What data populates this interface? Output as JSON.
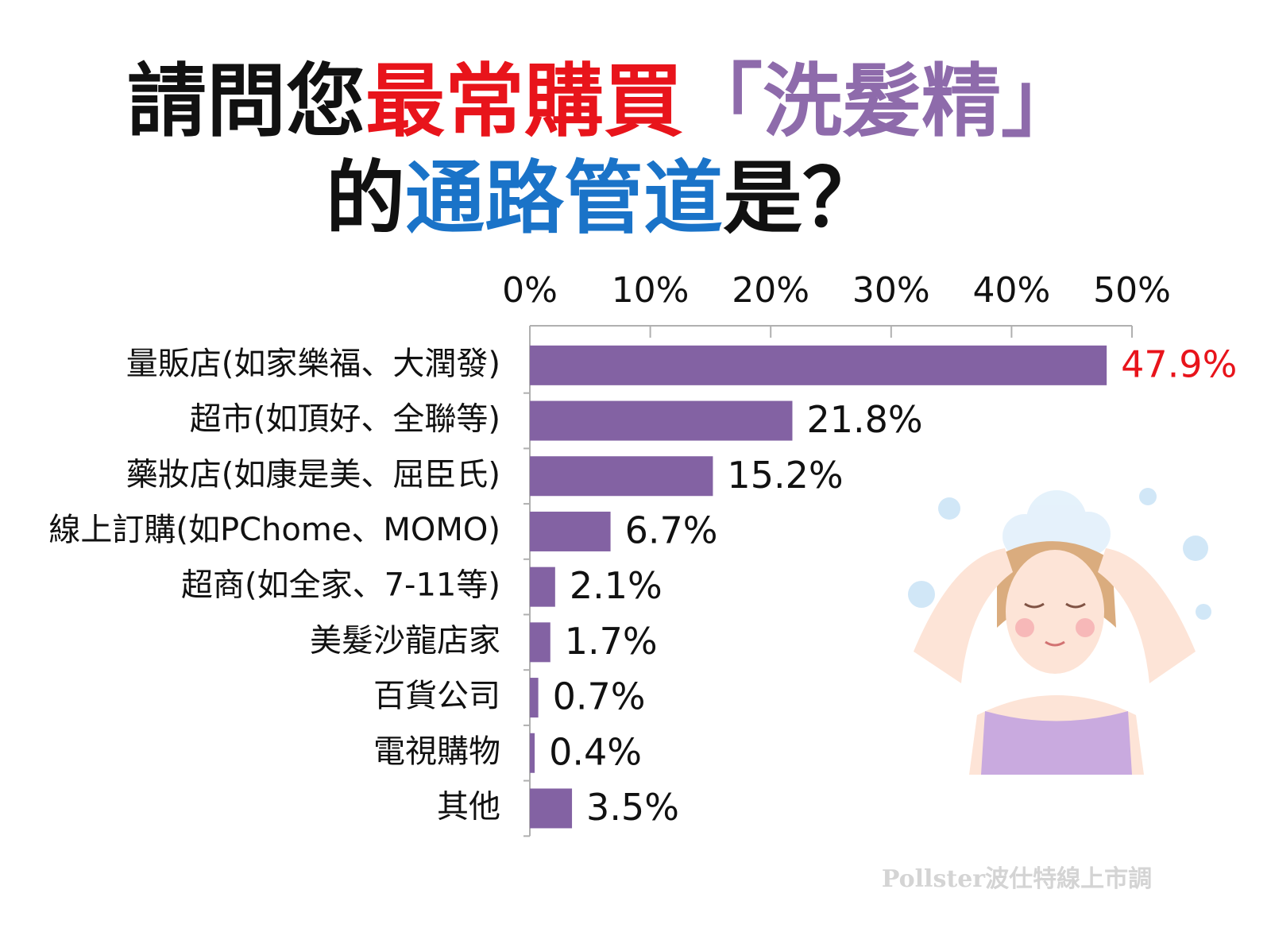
{
  "chart_data": {
    "type": "bar",
    "orientation": "horizontal",
    "title": [
      [
        {
          "text": "請問您",
          "color": "#111111"
        },
        {
          "text": "最常購買",
          "color": "#e8141b"
        },
        {
          "text": "「洗髮精」",
          "color": "#8e6bab"
        }
      ],
      [
        {
          "text": "的",
          "color": "#111111"
        },
        {
          "text": "通路管道",
          "color": "#1a73c8"
        },
        {
          "text": "是？",
          "color": "#111111"
        }
      ]
    ],
    "categories": [
      "量販店(如家樂福、大潤發)",
      "超市(如頂好、全聯等)",
      "藥妝店(如康是美、屈臣氏)",
      "線上訂購(如PChome、MOMO)",
      "超商(如全家、7-11等)",
      "美髮沙龍店家",
      "百貨公司",
      "電視購物",
      "其他"
    ],
    "values": [
      47.9,
      21.8,
      15.2,
      6.7,
      2.1,
      1.7,
      0.7,
      0.4,
      3.5
    ],
    "value_labels": [
      "47.9%",
      "21.8%",
      "15.2%",
      "6.7%",
      "2.1%",
      "1.7%",
      "0.7%",
      "0.4%",
      "3.5%"
    ],
    "value_label_colors": [
      "#e8141b",
      "#111111",
      "#111111",
      "#111111",
      "#111111",
      "#111111",
      "#111111",
      "#111111",
      "#111111"
    ],
    "color": "#8362a3",
    "xlim": [
      0,
      50
    ],
    "xticks": [
      {
        "value": 0,
        "label": "0%"
      },
      {
        "value": 10,
        "label": "10%"
      },
      {
        "value": 20,
        "label": "20%"
      },
      {
        "value": 30,
        "label": "30%"
      },
      {
        "value": 40,
        "label": "40%"
      },
      {
        "value": 50,
        "label": "50%"
      }
    ],
    "source": "Pollster波仕特線上市調"
  }
}
